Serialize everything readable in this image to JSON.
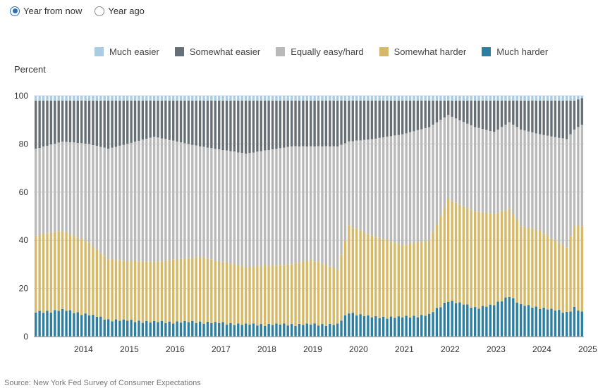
{
  "toggle": {
    "options": [
      {
        "label": "Year from now",
        "checked": true
      },
      {
        "label": "Year ago",
        "checked": false
      }
    ]
  },
  "colors": {
    "much_easier": "#a9cce3",
    "somewhat_easier": "#666e76",
    "equally": "#b9b9b9",
    "somewhat_harder": "#d6b968",
    "much_harder": "#2c7fa0",
    "radio_accent": "#2a6fba"
  },
  "chart_data": {
    "type": "bar",
    "stacked": true,
    "ylabel": "Percent",
    "ylim": [
      0,
      100
    ],
    "yticks": [
      0,
      20,
      40,
      60,
      80,
      100
    ],
    "grid": true,
    "legend_position": "top",
    "x_start": "2013-06",
    "x_end": "2025-05",
    "xtick_labels": [
      "2014",
      "2015",
      "2016",
      "2017",
      "2018",
      "2019",
      "2020",
      "2021",
      "2022",
      "2023",
      "2024",
      "2025"
    ],
    "series": [
      {
        "name": "Much harder",
        "color": "#2c7fa0",
        "knots": [
          [
            "2013-06",
            10
          ],
          [
            "2014-01",
            11
          ],
          [
            "2014-08",
            9
          ],
          [
            "2015-01",
            7
          ],
          [
            "2016-01",
            6
          ],
          [
            "2017-01",
            6
          ],
          [
            "2018-01",
            5
          ],
          [
            "2019-01",
            5
          ],
          [
            "2020-01",
            5
          ],
          [
            "2020-04",
            10
          ],
          [
            "2020-10",
            8
          ],
          [
            "2021-06",
            8
          ],
          [
            "2022-01",
            9
          ],
          [
            "2022-06",
            15
          ],
          [
            "2023-01",
            12
          ],
          [
            "2023-06",
            13
          ],
          [
            "2023-10",
            17
          ],
          [
            "2024-01",
            13
          ],
          [
            "2024-06",
            12
          ],
          [
            "2025-01",
            10
          ],
          [
            "2025-03",
            12
          ],
          [
            "2025-05",
            10
          ]
        ]
      },
      {
        "name": "Somewhat harder",
        "color": "#d6b968",
        "knots": [
          [
            "2013-06",
            32
          ],
          [
            "2014-01",
            33
          ],
          [
            "2014-08",
            30
          ],
          [
            "2015-01",
            25
          ],
          [
            "2016-01",
            25
          ],
          [
            "2017-01",
            27
          ],
          [
            "2018-01",
            24
          ],
          [
            "2019-01",
            25
          ],
          [
            "2019-06",
            27
          ],
          [
            "2020-01",
            23
          ],
          [
            "2020-04",
            36
          ],
          [
            "2020-10",
            34
          ],
          [
            "2021-06",
            30
          ],
          [
            "2022-01",
            31
          ],
          [
            "2022-06",
            42
          ],
          [
            "2023-01",
            40
          ],
          [
            "2023-06",
            38
          ],
          [
            "2023-10",
            36
          ],
          [
            "2024-01",
            33
          ],
          [
            "2024-06",
            32
          ],
          [
            "2025-01",
            27
          ],
          [
            "2025-03",
            34
          ],
          [
            "2025-05",
            36
          ]
        ]
      },
      {
        "name": "Equally easy/hard",
        "color": "#b9b9b9",
        "knots": [
          [
            "2013-06",
            36
          ],
          [
            "2014-01",
            37
          ],
          [
            "2014-08",
            41
          ],
          [
            "2015-01",
            46
          ],
          [
            "2016-01",
            52
          ],
          [
            "2017-01",
            46
          ],
          [
            "2018-01",
            47
          ],
          [
            "2019-01",
            49
          ],
          [
            "2019-06",
            47
          ],
          [
            "2020-01",
            51
          ],
          [
            "2020-04",
            35
          ],
          [
            "2020-10",
            40
          ],
          [
            "2021-06",
            46
          ],
          [
            "2022-01",
            47
          ],
          [
            "2022-06",
            35
          ],
          [
            "2023-01",
            35
          ],
          [
            "2023-06",
            34
          ],
          [
            "2023-10",
            36
          ],
          [
            "2024-01",
            40
          ],
          [
            "2024-06",
            40
          ],
          [
            "2025-01",
            45
          ],
          [
            "2025-03",
            40
          ],
          [
            "2025-05",
            42
          ]
        ]
      },
      {
        "name": "Somewhat easier",
        "color": "#666e76",
        "knots": [
          [
            "2013-06",
            20
          ],
          [
            "2014-01",
            17
          ],
          [
            "2014-08",
            18
          ],
          [
            "2015-01",
            20
          ],
          [
            "2016-01",
            15
          ],
          [
            "2017-01",
            19
          ],
          [
            "2018-01",
            22
          ],
          [
            "2019-01",
            19
          ],
          [
            "2019-06",
            19
          ],
          [
            "2020-01",
            19
          ],
          [
            "2020-04",
            17
          ],
          [
            "2020-10",
            16
          ],
          [
            "2021-06",
            14
          ],
          [
            "2022-01",
            11
          ],
          [
            "2022-06",
            6
          ],
          [
            "2023-01",
            11
          ],
          [
            "2023-06",
            13
          ],
          [
            "2023-10",
            9
          ],
          [
            "2024-01",
            12
          ],
          [
            "2024-06",
            14
          ],
          [
            "2025-01",
            16
          ],
          [
            "2025-03",
            12
          ],
          [
            "2025-05",
            11
          ]
        ]
      },
      {
        "name": "Much easier",
        "color": "#a9cce3",
        "knots": [
          [
            "2013-06",
            2
          ],
          [
            "2014-01",
            2
          ],
          [
            "2014-08",
            2
          ],
          [
            "2015-01",
            2
          ],
          [
            "2016-01",
            2
          ],
          [
            "2017-01",
            2
          ],
          [
            "2018-01",
            2
          ],
          [
            "2019-01",
            2
          ],
          [
            "2019-06",
            2
          ],
          [
            "2020-01",
            2
          ],
          [
            "2020-04",
            2
          ],
          [
            "2020-10",
            2
          ],
          [
            "2021-06",
            2
          ],
          [
            "2022-01",
            2
          ],
          [
            "2022-06",
            2
          ],
          [
            "2023-01",
            2
          ],
          [
            "2023-06",
            2
          ],
          [
            "2023-10",
            2
          ],
          [
            "2024-01",
            2
          ],
          [
            "2024-06",
            2
          ],
          [
            "2025-01",
            2
          ],
          [
            "2025-03",
            2
          ],
          [
            "2025-05",
            1
          ]
        ]
      }
    ],
    "legend": [
      "Much easier",
      "Somewhat easier",
      "Equally easy/hard",
      "Somewhat harder",
      "Much harder"
    ]
  },
  "source": "Source: New York Fed Survey of Consumer Expectations"
}
